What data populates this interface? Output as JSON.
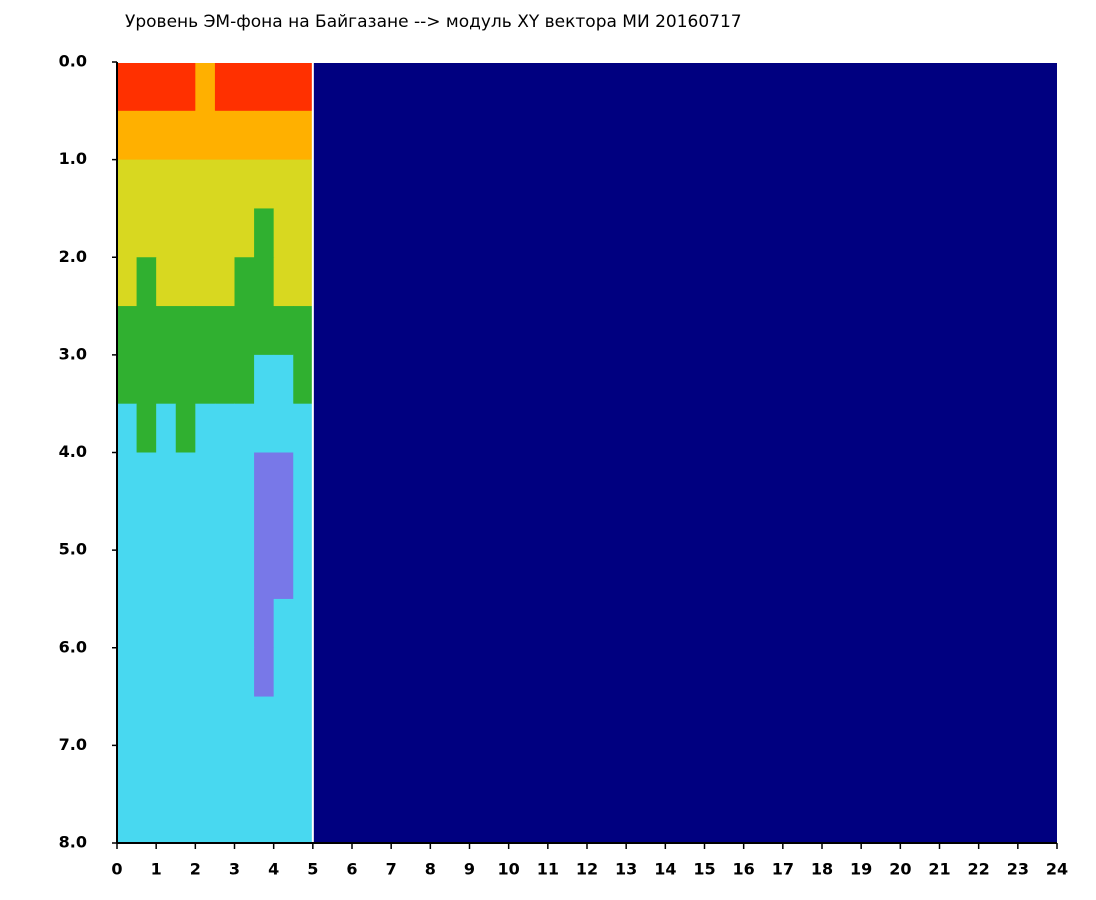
{
  "chart_data": {
    "type": "heatmap",
    "title": "Уровень ЭМ-фона на Байгазане  -->  модуль XY вектора МИ  20160717",
    "background": "#000080",
    "x_bins": [
      0,
      0.5,
      1,
      1.5,
      2,
      2.5,
      3,
      3.5,
      4,
      4.5,
      5
    ],
    "y_bins": [
      0,
      0.5,
      1,
      1.5,
      2,
      2.5,
      3,
      3.5,
      4,
      4.5,
      5,
      5.5,
      6,
      6.5,
      7,
      7.5,
      8
    ],
    "colors": [
      "#7878e8",
      "#48d8f0",
      "#30b030",
      "#d8d820",
      "#ffb000",
      "#ff3000"
    ],
    "values": [
      [
        5,
        5,
        5,
        5,
        4,
        5,
        5,
        5,
        5,
        5
      ],
      [
        4,
        4,
        4,
        4,
        4,
        4,
        4,
        4,
        4,
        4
      ],
      [
        3,
        3,
        3,
        3,
        3,
        3,
        3,
        3,
        3,
        3
      ],
      [
        3,
        3,
        3,
        3,
        3,
        3,
        3,
        2,
        3,
        3
      ],
      [
        3,
        2,
        3,
        3,
        3,
        3,
        2,
        2,
        3,
        3
      ],
      [
        2,
        2,
        2,
        2,
        2,
        2,
        2,
        2,
        2,
        2
      ],
      [
        2,
        2,
        2,
        2,
        2,
        2,
        2,
        1,
        1,
        2
      ],
      [
        1,
        2,
        1,
        2,
        1,
        1,
        1,
        1,
        1,
        1
      ],
      [
        1,
        1,
        1,
        1,
        1,
        1,
        1,
        0,
        0,
        1
      ],
      [
        1,
        1,
        1,
        1,
        1,
        1,
        1,
        0,
        0,
        1
      ],
      [
        1,
        1,
        1,
        1,
        1,
        1,
        1,
        0,
        0,
        1
      ],
      [
        1,
        1,
        1,
        1,
        1,
        1,
        1,
        0,
        1,
        1
      ],
      [
        1,
        1,
        1,
        1,
        1,
        1,
        1,
        0,
        1,
        1
      ],
      [
        1,
        1,
        1,
        1,
        1,
        1,
        1,
        1,
        1,
        1
      ],
      [
        1,
        1,
        1,
        1,
        1,
        1,
        1,
        1,
        1,
        1
      ],
      [
        1,
        1,
        1,
        1,
        1,
        1,
        1,
        1,
        1,
        1
      ]
    ],
    "xlim": [
      0,
      24
    ],
    "ylim": [
      8,
      0
    ],
    "xticks": [
      0,
      1,
      2,
      3,
      4,
      5,
      6,
      7,
      8,
      9,
      10,
      11,
      12,
      13,
      14,
      15,
      16,
      17,
      18,
      19,
      20,
      21,
      22,
      23,
      24
    ],
    "yticks": [
      {
        "value": 0,
        "label": "0.0"
      },
      {
        "value": 1,
        "label": "1.0"
      },
      {
        "value": 2,
        "label": "2.0"
      },
      {
        "value": 3,
        "label": "3.0"
      },
      {
        "value": 4,
        "label": "4.0"
      },
      {
        "value": 5,
        "label": "5.0"
      },
      {
        "value": 6,
        "label": "6.0"
      },
      {
        "value": 7,
        "label": "7.0"
      },
      {
        "value": 8,
        "label": "8.0"
      }
    ]
  }
}
